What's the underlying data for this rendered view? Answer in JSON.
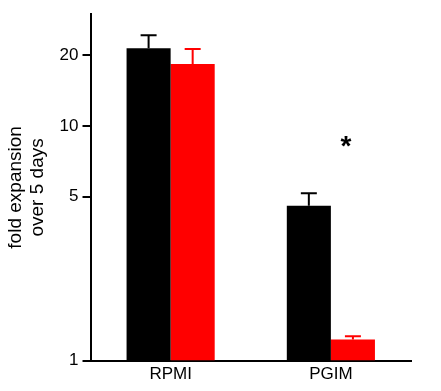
{
  "chart_data": {
    "type": "bar",
    "ylabel": [
      "fold expansion",
      "over 5 days"
    ],
    "categories": [
      "RPMI",
      "PGIM"
    ],
    "series": [
      {
        "color": "#000000",
        "values": [
          21.5,
          4.57
        ],
        "errors": [
          2.9,
          0.6
        ]
      },
      {
        "color": "#ff0000",
        "values": [
          18.4,
          1.23
        ],
        "errors": [
          2.9,
          0.04
        ]
      }
    ],
    "log": "y",
    "ylim": [
      1,
      30
    ],
    "yticks": [
      1,
      5,
      10,
      20
    ],
    "grid": false,
    "annotations": [
      {
        "text": "*",
        "x": "PGIM",
        "y": 8.6
      }
    ]
  }
}
